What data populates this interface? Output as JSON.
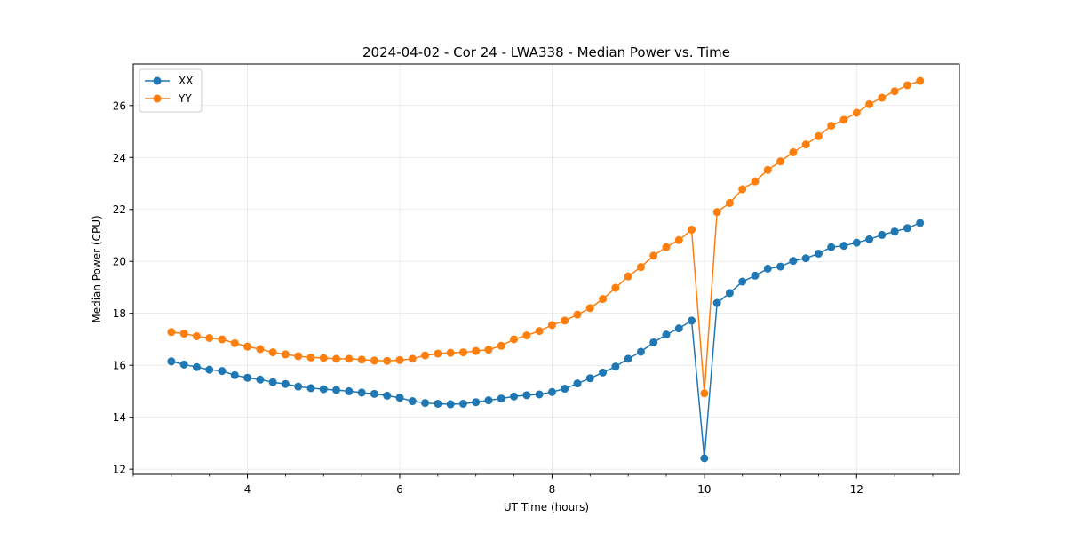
{
  "chart_data": {
    "type": "line",
    "title": "2024-04-02 - Cor 24 - LWA338 - Median Power vs. Time",
    "xlabel": "UT Time (hours)",
    "ylabel": "Median Power (CPU)",
    "xlim": [
      2.5,
      13.35
    ],
    "ylim": [
      11.8,
      27.6
    ],
    "xticks": [
      4,
      6,
      8,
      10,
      12
    ],
    "xtick_labels": [
      "4",
      "6",
      "8",
      "10",
      "12"
    ],
    "yticks": [
      12,
      14,
      16,
      18,
      20,
      22,
      24,
      26
    ],
    "ytick_labels": [
      "12",
      "14",
      "16",
      "18",
      "20",
      "22",
      "24",
      "26"
    ],
    "grid": true,
    "legend_position": "top-left",
    "x": [
      3.0,
      3.1667,
      3.3333,
      3.5,
      3.6667,
      3.8333,
      4.0,
      4.1667,
      4.3333,
      4.5,
      4.6667,
      4.8333,
      5.0,
      5.1667,
      5.3333,
      5.5,
      5.6667,
      5.8333,
      6.0,
      6.1667,
      6.3333,
      6.5,
      6.6667,
      6.8333,
      7.0,
      7.1667,
      7.3333,
      7.5,
      7.6667,
      7.8333,
      8.0,
      8.1667,
      8.3333,
      8.5,
      8.6667,
      8.8333,
      9.0,
      9.1667,
      9.3333,
      9.5,
      9.6667,
      9.8333,
      10.0,
      10.1667,
      10.3333,
      10.5,
      10.6667,
      10.8333,
      11.0,
      11.1667,
      11.3333,
      11.5,
      11.6667,
      11.8333,
      12.0,
      12.1667,
      12.3333,
      12.5,
      12.6667,
      12.8333
    ],
    "series": [
      {
        "name": "XX",
        "color": "#1f77b4",
        "values": [
          16.15,
          16.03,
          15.93,
          15.83,
          15.78,
          15.62,
          15.52,
          15.45,
          15.35,
          15.28,
          15.18,
          15.12,
          15.08,
          15.05,
          15.0,
          14.95,
          14.9,
          14.83,
          14.75,
          14.62,
          14.55,
          14.52,
          14.5,
          14.52,
          14.58,
          14.65,
          14.72,
          14.8,
          14.85,
          14.88,
          14.97,
          15.1,
          15.3,
          15.5,
          15.72,
          15.95,
          16.25,
          16.52,
          16.88,
          17.18,
          17.42,
          17.72,
          12.42,
          18.4,
          18.78,
          19.22,
          19.45,
          19.72,
          19.8,
          20.02,
          20.12,
          20.3,
          20.55,
          20.6,
          20.72,
          20.85,
          21.02,
          21.15,
          21.28,
          21.48
        ]
      },
      {
        "name": "YY",
        "color": "#ff7f0e",
        "values": [
          17.28,
          17.22,
          17.12,
          17.05,
          17.0,
          16.85,
          16.72,
          16.62,
          16.5,
          16.42,
          16.35,
          16.3,
          16.28,
          16.25,
          16.25,
          16.22,
          16.18,
          16.17,
          16.2,
          16.25,
          16.38,
          16.45,
          16.48,
          16.5,
          16.55,
          16.6,
          16.75,
          17.0,
          17.15,
          17.32,
          17.55,
          17.72,
          17.95,
          18.2,
          18.55,
          18.98,
          19.42,
          19.78,
          20.22,
          20.55,
          20.82,
          21.22,
          14.92,
          21.9,
          22.25,
          22.78,
          23.08,
          23.52,
          23.85,
          24.2,
          24.5,
          24.82,
          25.22,
          25.45,
          25.72,
          26.05,
          26.3,
          26.55,
          26.78,
          26.95
        ]
      }
    ]
  }
}
